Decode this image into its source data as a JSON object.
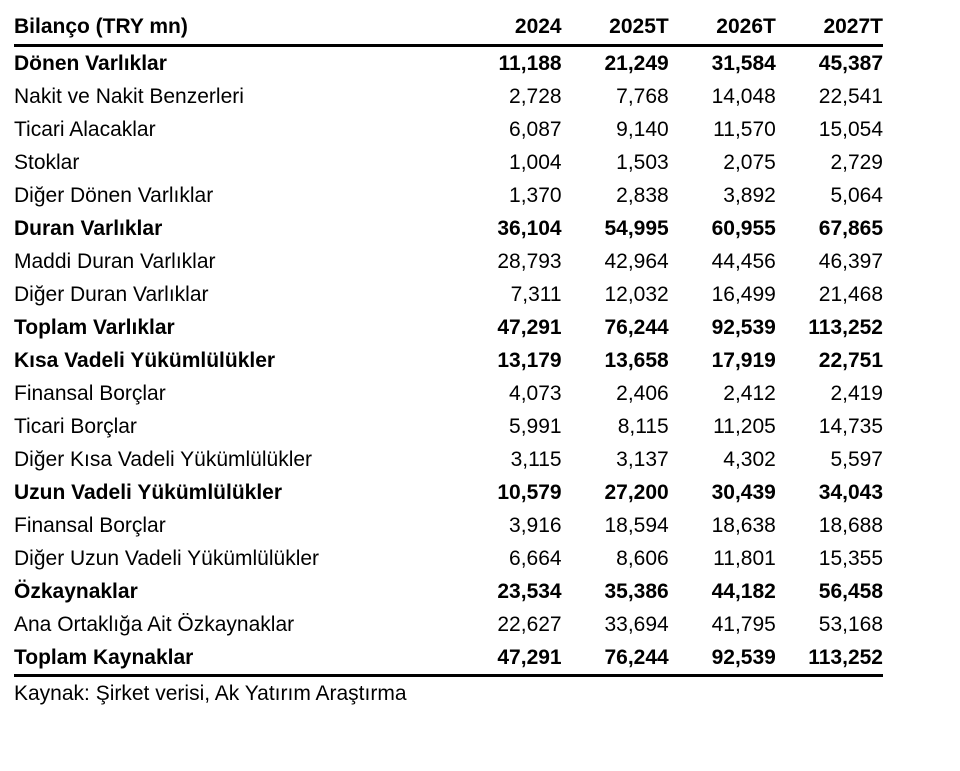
{
  "table": {
    "header": {
      "label": "Bilanço (TRY mn)",
      "columns": [
        "2024",
        "2025T",
        "2026T",
        "2027T"
      ]
    },
    "rows": [
      {
        "label": "Dönen Varlıklar",
        "bold": true,
        "values": [
          "11,188",
          "21,249",
          "31,584",
          "45,387"
        ]
      },
      {
        "label": "Nakit ve Nakit Benzerleri",
        "bold": false,
        "values": [
          "2,728",
          "7,768",
          "14,048",
          "22,541"
        ]
      },
      {
        "label": "Ticari Alacaklar",
        "bold": false,
        "values": [
          "6,087",
          "9,140",
          "11,570",
          "15,054"
        ]
      },
      {
        "label": "Stoklar",
        "bold": false,
        "values": [
          "1,004",
          "1,503",
          "2,075",
          "2,729"
        ]
      },
      {
        "label": "Diğer Dönen Varlıklar",
        "bold": false,
        "values": [
          "1,370",
          "2,838",
          "3,892",
          "5,064"
        ]
      },
      {
        "label": "Duran Varlıklar",
        "bold": true,
        "values": [
          "36,104",
          "54,995",
          "60,955",
          "67,865"
        ]
      },
      {
        "label": "Maddi Duran Varlıklar",
        "bold": false,
        "values": [
          "28,793",
          "42,964",
          "44,456",
          "46,397"
        ]
      },
      {
        "label": "Diğer Duran Varlıklar",
        "bold": false,
        "values": [
          "7,311",
          "12,032",
          "16,499",
          "21,468"
        ]
      },
      {
        "label": "Toplam Varlıklar",
        "bold": true,
        "values": [
          "47,291",
          "76,244",
          "92,539",
          "113,252"
        ]
      },
      {
        "label": "Kısa Vadeli Yükümlülükler",
        "bold": true,
        "values": [
          "13,179",
          "13,658",
          "17,919",
          "22,751"
        ]
      },
      {
        "label": "Finansal Borçlar",
        "bold": false,
        "values": [
          "4,073",
          "2,406",
          "2,412",
          "2,419"
        ]
      },
      {
        "label": "Ticari Borçlar",
        "bold": false,
        "values": [
          "5,991",
          "8,115",
          "11,205",
          "14,735"
        ]
      },
      {
        "label": "Diğer Kısa Vadeli Yükümlülükler",
        "bold": false,
        "values": [
          "3,115",
          "3,137",
          "4,302",
          "5,597"
        ]
      },
      {
        "label": "Uzun Vadeli Yükümlülükler",
        "bold": true,
        "values": [
          "10,579",
          "27,200",
          "30,439",
          "34,043"
        ]
      },
      {
        "label": "Finansal Borçlar",
        "bold": false,
        "values": [
          "3,916",
          "18,594",
          "18,638",
          "18,688"
        ]
      },
      {
        "label": "Diğer Uzun Vadeli Yükümlülükler",
        "bold": false,
        "values": [
          "6,664",
          "8,606",
          "11,801",
          "15,355"
        ]
      },
      {
        "label": "Özkaynaklar",
        "bold": true,
        "values": [
          "23,534",
          "35,386",
          "44,182",
          "56,458"
        ]
      },
      {
        "label": "Ana Ortaklığa Ait Özkaynaklar",
        "bold": false,
        "values": [
          "22,627",
          "33,694",
          "41,795",
          "53,168"
        ]
      },
      {
        "label": "Toplam Kaynaklar",
        "bold": true,
        "values": [
          "47,291",
          "76,244",
          "92,539",
          "113,252"
        ]
      }
    ],
    "footer": "Kaynak: Şirket verisi, Ak Yatırım Araştırma"
  }
}
